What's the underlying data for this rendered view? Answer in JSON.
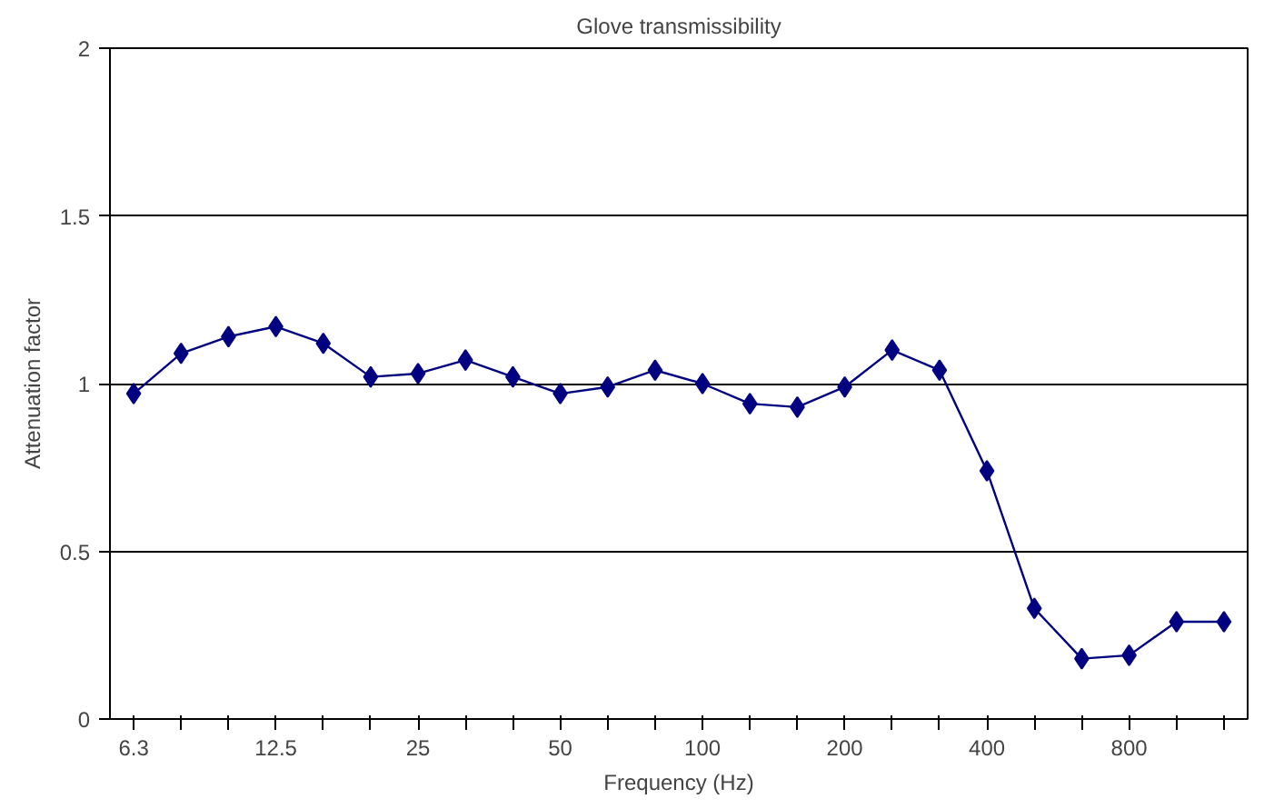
{
  "chart_data": {
    "type": "line",
    "title": "Glove transmissibility",
    "xlabel": "Frequency (Hz)",
    "ylabel": "Attenuation factor",
    "categories": [
      "6.3",
      null,
      null,
      "12.5",
      null,
      null,
      "25",
      null,
      null,
      "50",
      null,
      null,
      "100",
      null,
      null,
      "200",
      null,
      null,
      "400",
      null,
      null,
      "800",
      null,
      null
    ],
    "series": [
      {
        "color": "#000080",
        "values": [
          0.97,
          1.09,
          1.14,
          1.17,
          1.12,
          1.02,
          1.03,
          1.07,
          1.02,
          0.97,
          0.99,
          1.04,
          1.0,
          0.94,
          0.93,
          0.99,
          1.1,
          1.04,
          0.74,
          0.33,
          0.18,
          0.19,
          0.29,
          0.29
        ]
      }
    ],
    "ylim": [
      0,
      2
    ],
    "yticks": [
      0,
      0.5,
      1,
      1.5,
      2
    ],
    "grid": "y",
    "marker": "diamond",
    "line_style": "solid"
  }
}
